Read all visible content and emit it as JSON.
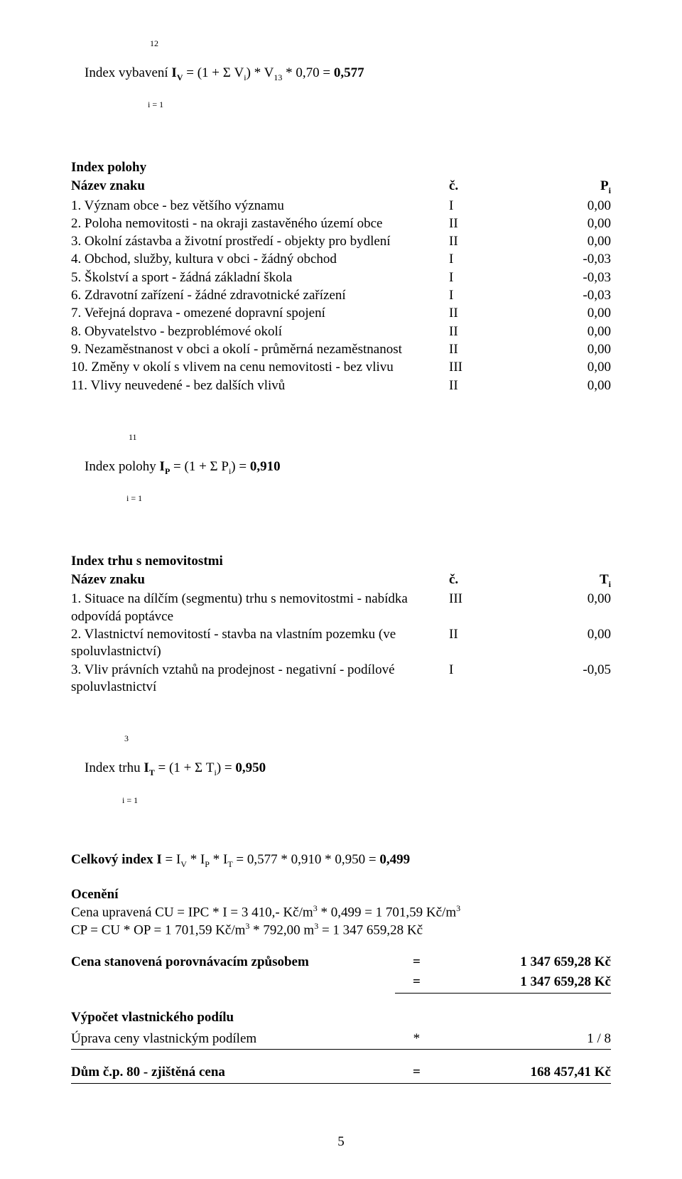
{
  "text_color": "#000000",
  "background_color": "#ffffff",
  "font_family": "Times New Roman",
  "font_size_pt": 14,
  "iv_formula_top": "                                     12",
  "iv_formula_mid_a": "Index vybavení ",
  "iv_formula_mid_b": "I",
  "iv_formula_mid_c": " = (1 + Σ V",
  "iv_formula_mid_d": ") * V",
  "iv_formula_mid_e": " * 0,70 = ",
  "iv_formula_mid_f": "0,577",
  "iv_sub_V": "V",
  "iv_sub_i": "i",
  "iv_sub_13": "13",
  "iv_formula_bot": "                                    i = 1",
  "section_polohy_title": "Index polohy",
  "polohy_header_a": "Název znaku",
  "polohy_header_b": "č.",
  "polohy_header_c": "P",
  "polohy_header_c_sub": "i",
  "polohy_rows": [
    {
      "t": "1. Význam obce - bez většího významu",
      "c": "I",
      "v": "0,00"
    },
    {
      "t": "2. Poloha nemovitosti - na okraji zastavěného území obce",
      "c": "II",
      "v": "0,00"
    },
    {
      "t": "3. Okolní zástavba a životní prostředí - objekty pro bydlení",
      "c": "II",
      "v": "0,00"
    },
    {
      "t": "4. Obchod, služby, kultura v obci - žádný obchod",
      "c": "I",
      "v": "-0,03"
    },
    {
      "t": "5. Školství a sport - žádná základní škola",
      "c": "I",
      "v": "-0,03"
    },
    {
      "t": "6. Zdravotní zařízení - žádné zdravotnické zařízení",
      "c": "I",
      "v": "-0,03"
    },
    {
      "t": "7. Veřejná doprava - omezené dopravní spojení",
      "c": "II",
      "v": "0,00"
    },
    {
      "t": "8. Obyvatelstvo - bezproblémové okolí",
      "c": "II",
      "v": "0,00"
    },
    {
      "t": "9. Nezaměstnanost v obci a okolí - průměrná nezaměstnanost",
      "c": "II",
      "v": "0,00"
    },
    {
      "t": "10. Změny v okolí s vlivem na cenu nemovitosti - bez vlivu",
      "c": "III",
      "v": "0,00"
    },
    {
      "t": "11. Vlivy neuvedené - bez dalších vlivů",
      "c": "II",
      "v": "0,00"
    }
  ],
  "ip_formula_top": "                           11",
  "ip_formula_mid_a": "Index polohy ",
  "ip_formula_mid_b": "I",
  "ip_formula_mid_c": " = (1 + Σ P",
  "ip_formula_mid_d": ") = ",
  "ip_formula_mid_e": "0,910",
  "ip_sub_P": "P",
  "ip_formula_bot": "                          i = 1",
  "section_trhu_title": "Index trhu s nemovitostmi",
  "trhu_header_a": "Název znaku",
  "trhu_header_b": "č.",
  "trhu_header_c": "T",
  "trhu_header_c_sub": "i",
  "trhu_rows": [
    {
      "t": "1. Situace na dílčím (segmentu) trhu s nemovitostmi - nabídka odpovídá poptávce",
      "c": "III",
      "v": "0,00"
    },
    {
      "t": "2. Vlastnictví nemovitostí - stavba na vlastním pozemku (ve spoluvlastnictví)",
      "c": "II",
      "v": "0,00"
    },
    {
      "t": "3. Vliv právních vztahů na prodejnost - negativní - podílové spoluvlastnictví",
      "c": "I",
      "v": "-0,05"
    }
  ],
  "it_formula_top": "                         3",
  "it_formula_mid_a": "Index trhu ",
  "it_formula_mid_b": "I",
  "it_formula_mid_c": " = (1 + Σ T",
  "it_formula_mid_d": ") = ",
  "it_formula_mid_e": "0,950",
  "it_sub_T": "T",
  "it_formula_bot": "                        i = 1",
  "celkovy_a": "Celkový index I",
  "celkovy_b": " = I",
  "celkovy_c": " * I",
  "celkovy_d": " * I",
  "celkovy_e": " = 0,577 * 0,910 * 0,950 = ",
  "celkovy_f": "0,499",
  "sub_V": "V",
  "sub_P": "P",
  "sub_T": "T",
  "oceneni_title": "Ocenění",
  "oceneni_line1_a": "Cena upravená CU = IPC * I = 3 410,- Kč/m",
  "oceneni_line1_b": " * 0,499 = 1 701,59 Kč/m",
  "oceneni_line2_a": "CP = CU * OP = 1 701,59 Kč/m",
  "oceneni_line2_b": " * 792,00 m",
  "oceneni_line2_c": " = 1 347 659,28 Kč",
  "sup_3": "3",
  "result_rows": [
    {
      "label": "Cena stanovená porovnávacím způsobem",
      "eq": "=",
      "val": "1 347 659,28 Kč",
      "bold_label": true,
      "bold_val": true,
      "underline": false
    },
    {
      "label": "",
      "eq": "=",
      "val": "1 347 659,28 Kč",
      "bold_label": false,
      "bold_val": true,
      "underline": true
    }
  ],
  "vypocet_title": "Výpočet vlastnického podílu",
  "uprava_label": "Úprava ceny vlastnickým podílem",
  "uprava_eq": "*",
  "uprava_val": "1 / 8",
  "dum_label": "Dům č.p. 80 - zjištěná cena",
  "dum_eq": "=",
  "dum_val": "168 457,41 Kč",
  "page_number": "5"
}
